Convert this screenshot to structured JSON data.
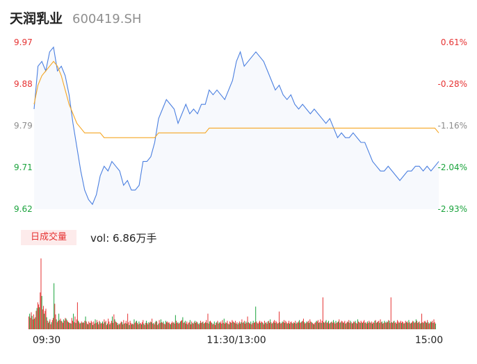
{
  "header": {
    "name": "天润乳业",
    "code": "600419.SH"
  },
  "chart_data": {
    "type": "line",
    "price_axis": {
      "ticks": [
        "9.97",
        "9.88",
        "9.79",
        "9.71",
        "9.62"
      ],
      "min": 9.62,
      "max": 9.97
    },
    "pct_axis": {
      "ticks": [
        "0.61%",
        "-0.28%",
        "-1.16%",
        "-2.04%",
        "-2.93%"
      ]
    },
    "x_ticks": [
      "09:30",
      "11:30/13:00",
      "15:00"
    ],
    "series": [
      {
        "values": [
          9.83,
          9.92,
          9.93,
          9.91,
          9.95,
          9.96,
          9.91,
          9.92,
          9.9,
          9.86,
          9.8,
          9.75,
          9.7,
          9.66,
          9.64,
          9.63,
          9.65,
          9.69,
          9.71,
          9.7,
          9.72,
          9.71,
          9.7,
          9.67,
          9.68,
          9.66,
          9.66,
          9.67,
          9.72,
          9.72,
          9.73,
          9.76,
          9.81,
          9.83,
          9.85,
          9.84,
          9.83,
          9.8,
          9.82,
          9.84,
          9.82,
          9.83,
          9.82,
          9.84,
          9.84,
          9.87,
          9.86,
          9.87,
          9.86,
          9.85,
          9.87,
          9.89,
          9.93,
          9.95,
          9.92,
          9.93,
          9.94,
          9.95,
          9.94,
          9.93,
          9.91,
          9.89,
          9.87,
          9.88,
          9.86,
          9.85,
          9.86,
          9.84,
          9.83,
          9.84,
          9.83,
          9.82,
          9.83,
          9.82,
          9.81,
          9.8,
          9.81,
          9.79,
          9.77,
          9.78,
          9.77,
          9.77,
          9.78,
          9.77,
          9.76,
          9.76,
          9.74,
          9.72,
          9.71,
          9.7,
          9.7,
          9.71,
          9.7,
          9.69,
          9.68,
          9.69,
          9.7,
          9.7,
          9.71,
          9.71,
          9.7,
          9.71,
          9.7,
          9.71,
          9.72
        ],
        "color": "#4a7fe0"
      },
      {
        "values": [
          9.84,
          9.88,
          9.9,
          9.91,
          9.92,
          9.93,
          9.92,
          9.9,
          9.87,
          9.84,
          9.82,
          9.8,
          9.79,
          9.78,
          9.78,
          9.78,
          9.78,
          9.78,
          9.77,
          9.77,
          9.77,
          9.77,
          9.77,
          9.77,
          9.77,
          9.77,
          9.77,
          9.77,
          9.77,
          9.77,
          9.77,
          9.77,
          9.78,
          9.78,
          9.78,
          9.78,
          9.78,
          9.78,
          9.78,
          9.78,
          9.78,
          9.78,
          9.78,
          9.78,
          9.78,
          9.79,
          9.79,
          9.79,
          9.79,
          9.79,
          9.79,
          9.79,
          9.79,
          9.79,
          9.79,
          9.79,
          9.79,
          9.79,
          9.79,
          9.79,
          9.79,
          9.79,
          9.79,
          9.79,
          9.79,
          9.79,
          9.79,
          9.79,
          9.79,
          9.79,
          9.79,
          9.79,
          9.79,
          9.79,
          9.79,
          9.79,
          9.79,
          9.79,
          9.79,
          9.79,
          9.79,
          9.79,
          9.79,
          9.79,
          9.79,
          9.79,
          9.79,
          9.79,
          9.79,
          9.79,
          9.79,
          9.79,
          9.79,
          9.79,
          9.79,
          9.79,
          9.79,
          9.79,
          9.79,
          9.79,
          9.79,
          9.79,
          9.79,
          9.79,
          9.78
        ],
        "color": "#f5a623"
      }
    ],
    "volume": [
      18,
      22,
      16,
      24,
      19,
      14,
      21,
      15,
      17,
      26,
      30,
      38,
      35,
      31,
      52,
      100,
      47,
      28,
      33,
      22,
      26,
      29,
      17,
      12,
      9,
      11,
      14,
      7,
      10,
      13,
      16,
      65,
      36,
      21,
      14,
      10,
      12,
      22,
      13,
      15,
      12,
      11,
      9,
      14,
      12,
      16,
      15,
      13,
      11,
      10,
      9,
      9,
      8,
      16,
      12,
      22,
      10,
      18,
      9,
      14,
      38,
      12,
      10,
      8,
      9,
      11,
      9,
      10,
      9,
      12,
      18,
      11,
      8,
      7,
      11,
      9,
      9,
      12,
      10,
      6,
      11,
      8,
      14,
      9,
      13,
      10,
      7,
      12,
      10,
      8,
      9,
      11,
      8,
      14,
      10,
      12,
      6,
      8,
      15,
      11,
      7,
      9,
      12,
      18,
      9,
      21,
      14,
      11,
      10,
      9,
      6,
      8,
      7,
      9,
      11,
      10,
      7,
      13,
      8,
      9,
      12,
      8,
      22,
      10,
      6,
      12,
      9,
      7,
      8,
      7,
      14,
      9,
      11,
      12,
      9,
      7,
      11,
      8,
      9,
      7,
      10,
      13,
      8,
      6,
      9,
      12,
      9,
      7,
      10,
      9,
      11,
      10,
      15,
      8,
      9,
      7,
      10,
      12,
      11,
      6,
      8,
      13,
      9,
      14,
      10,
      9,
      11,
      8,
      7,
      12,
      10,
      11,
      9,
      10,
      8,
      7,
      9,
      11,
      9,
      10,
      8,
      20,
      12,
      9,
      10,
      8,
      9,
      11,
      12,
      13,
      17,
      9,
      10,
      12,
      8,
      11,
      7,
      9,
      10,
      13,
      7,
      11,
      9,
      8,
      10,
      12,
      9,
      11,
      10,
      8,
      7,
      9,
      12,
      9,
      10,
      11,
      8,
      9,
      10,
      13,
      9,
      22,
      8,
      11,
      12,
      10,
      9,
      7,
      8,
      11,
      6,
      9,
      10,
      12,
      8,
      10,
      9,
      11,
      8,
      13,
      9,
      15,
      8,
      10,
      9,
      12,
      8,
      7,
      11,
      10,
      9,
      13,
      11,
      10,
      9,
      12,
      8,
      10,
      7,
      9,
      11,
      8,
      10,
      14,
      9,
      10,
      12,
      8,
      11,
      9,
      18,
      10,
      9,
      8,
      11,
      7,
      9,
      12,
      9,
      10,
      32,
      11,
      9,
      8,
      10,
      12,
      9,
      11,
      10,
      9,
      7,
      12,
      9,
      10,
      8,
      11,
      12,
      9,
      14,
      10,
      8,
      9,
      11,
      13,
      9,
      12,
      10,
      8,
      9,
      25,
      10,
      8,
      9,
      11,
      10,
      13,
      9,
      12,
      10,
      8,
      9,
      12,
      8,
      10,
      11,
      9,
      8,
      10,
      9,
      12,
      8,
      10,
      9,
      11,
      13,
      9,
      10,
      11,
      12,
      15,
      10,
      8,
      9,
      11,
      10,
      12,
      9,
      14,
      11,
      10,
      9,
      8,
      7,
      9,
      10,
      12,
      11,
      13,
      9,
      10,
      14,
      9,
      12,
      45,
      10,
      9,
      11,
      13,
      9,
      10,
      12,
      8,
      9,
      10,
      11,
      9,
      13,
      10,
      8,
      12,
      9,
      10,
      11,
      14,
      9,
      10,
      12,
      11,
      9,
      10,
      12,
      8,
      9,
      11,
      10,
      13,
      9,
      12,
      10,
      8,
      9,
      11,
      10,
      12,
      9,
      8,
      14,
      11,
      10,
      9,
      12,
      10,
      9,
      11,
      13,
      9,
      10,
      8,
      11,
      9,
      12,
      10,
      9,
      11,
      8,
      10,
      9,
      12,
      13,
      9,
      10,
      11,
      12,
      9,
      14,
      10,
      11,
      8,
      9,
      12,
      10,
      9,
      11,
      10,
      13,
      12,
      9,
      45,
      10,
      9,
      11,
      12,
      9,
      10,
      8,
      13,
      11,
      9,
      10,
      12,
      9,
      11,
      10,
      8,
      9,
      12,
      10,
      11,
      9,
      13,
      10,
      8,
      9,
      10,
      12,
      11,
      9,
      10,
      14,
      12,
      9,
      10,
      11,
      8,
      9,
      22,
      10,
      9,
      11,
      12,
      10,
      9,
      13,
      10,
      8,
      9,
      11,
      10,
      12,
      9,
      14,
      10,
      8
    ],
    "volume_text": "vol: 6.86万手",
    "volume_button": "日成交量"
  }
}
